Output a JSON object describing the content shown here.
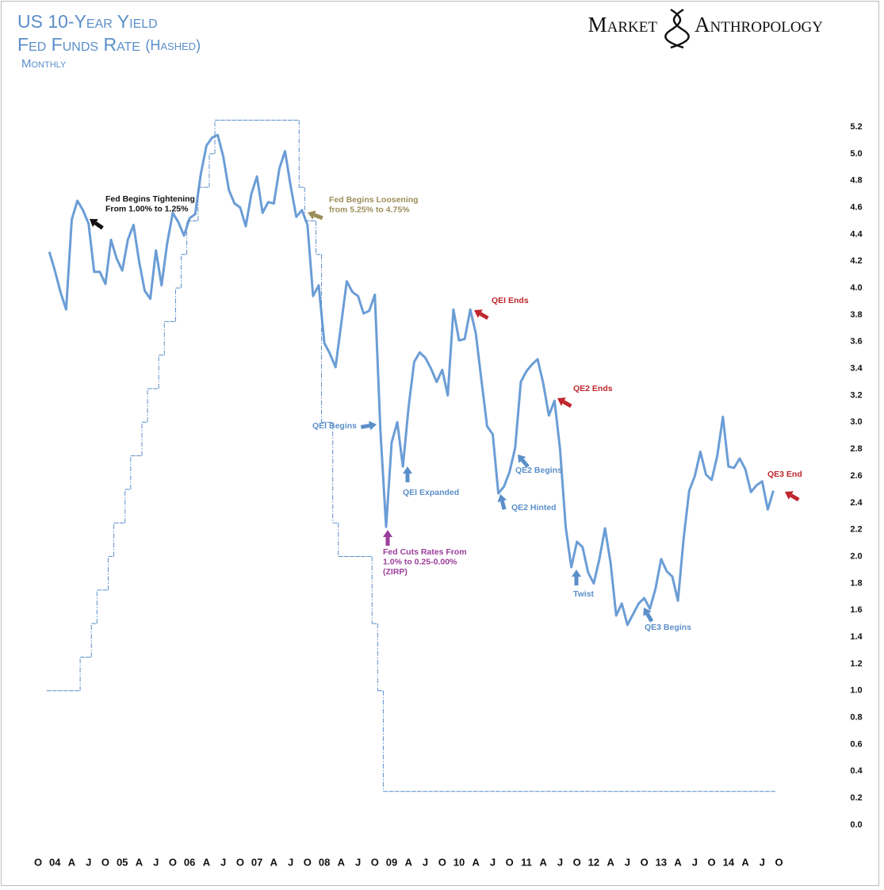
{
  "chart_data": {
    "type": "line",
    "title": "US 10-Year Yield",
    "title_line2": "Fed Funds Rate",
    "title_line2_note": "(Hashed)",
    "subtitle": "Monthly",
    "brand": [
      "Market",
      "Anthropology"
    ],
    "categories": [
      "O",
      null,
      null,
      "04",
      null,
      null,
      "A",
      null,
      null,
      "J",
      null,
      null,
      "O",
      null,
      null,
      "05",
      null,
      null,
      "A",
      null,
      null,
      "J",
      null,
      null,
      "O",
      null,
      null,
      "06",
      null,
      null,
      "A",
      null,
      null,
      "J",
      null,
      null,
      "O",
      null,
      null,
      "07",
      null,
      null,
      "A",
      null,
      null,
      "J",
      null,
      null,
      "O",
      null,
      null,
      "08",
      null,
      null,
      "A",
      null,
      null,
      "J",
      null,
      null,
      "O",
      null,
      null,
      "09",
      null,
      null,
      "A",
      null,
      null,
      "J",
      null,
      null,
      "O",
      null,
      null,
      "10",
      null,
      null,
      "A",
      null,
      null,
      "J",
      null,
      null,
      "O",
      null,
      null,
      "11",
      null,
      null,
      "A",
      null,
      null,
      "J",
      null,
      null,
      "O",
      null,
      null,
      "12",
      null,
      null,
      "A",
      null,
      null,
      "J",
      null,
      null,
      "O",
      null,
      null,
      "13",
      null,
      null,
      "A",
      null,
      null,
      "J",
      null,
      null,
      "O",
      null,
      null,
      "14",
      null,
      null,
      "A",
      null,
      null,
      "J",
      null,
      null,
      "O"
    ],
    "series": [
      {
        "color": "#6b9dd6",
        "style": "solid",
        "values": [
          null,
          null,
          4.27,
          4.13,
          3.97,
          3.84,
          4.51,
          4.65,
          4.58,
          4.48,
          4.12,
          4.12,
          4.03,
          4.36,
          4.22,
          4.13,
          4.36,
          4.47,
          4.2,
          3.98,
          3.92,
          4.28,
          4.02,
          4.33,
          4.56,
          4.49,
          4.39,
          4.52,
          4.55,
          4.85,
          5.06,
          5.12,
          5.14,
          4.98,
          4.73,
          4.63,
          4.6,
          4.46,
          4.7,
          4.83,
          4.56,
          4.64,
          4.63,
          4.89,
          5.02,
          4.76,
          4.53,
          4.58,
          4.47,
          3.94,
          4.02,
          3.59,
          3.51,
          3.41,
          3.73,
          4.05,
          3.97,
          3.94,
          3.81,
          3.83,
          3.95,
          2.93,
          2.22,
          2.85,
          3.0,
          2.67,
          3.11,
          3.45,
          3.52,
          3.48,
          3.4,
          3.3,
          3.39,
          3.2,
          3.84,
          3.61,
          3.62,
          3.84,
          3.66,
          3.31,
          2.97,
          2.91,
          2.47,
          2.52,
          2.63,
          2.81,
          3.3,
          3.38,
          3.43,
          3.47,
          3.29,
          3.05,
          3.16,
          2.8,
          2.22,
          1.92,
          2.11,
          2.07,
          1.88,
          1.8,
          1.98,
          2.21,
          1.95,
          1.56,
          1.65,
          1.49,
          1.57,
          1.65,
          1.69,
          1.61,
          1.76,
          1.98,
          1.89,
          1.85,
          1.67,
          2.13,
          2.49,
          2.6,
          2.78,
          2.61,
          2.57,
          2.75,
          3.04,
          2.67,
          2.66,
          2.73,
          2.65,
          2.48,
          2.53,
          2.56,
          2.35,
          2.49,
          null
        ]
      },
      {
        "color": "#5b8fc9",
        "style": "dash-dot-step",
        "values": [
          null,
          null,
          1,
          1,
          1,
          1,
          1,
          1,
          1.25,
          1.25,
          1.5,
          1.75,
          1.75,
          2,
          2.25,
          2.25,
          2.5,
          2.75,
          2.75,
          3,
          3.25,
          3.25,
          3.5,
          3.75,
          3.75,
          4,
          4.25,
          4.5,
          4.5,
          4.75,
          4.75,
          5,
          5.25,
          5.25,
          5.25,
          5.25,
          5.25,
          5.25,
          5.25,
          5.25,
          5.25,
          5.25,
          5.25,
          5.25,
          5.25,
          5.25,
          5.25,
          4.75,
          4.5,
          4.5,
          4.25,
          3,
          3,
          2.25,
          2,
          2,
          2,
          2,
          2,
          2,
          1.5,
          1,
          0.25,
          0.25,
          0.25,
          0.25,
          0.25,
          0.25,
          0.25,
          0.25,
          0.25,
          0.25,
          0.25,
          0.25,
          0.25,
          0.25,
          0.25,
          0.25,
          0.25,
          0.25,
          0.25,
          0.25,
          0.25,
          0.25,
          0.25,
          0.25,
          0.25,
          0.25,
          0.25,
          0.25,
          0.25,
          0.25,
          0.25,
          0.25,
          0.25,
          0.25,
          0.25,
          0.25,
          0.25,
          0.25,
          0.25,
          0.25,
          0.25,
          0.25,
          0.25,
          0.25,
          0.25,
          0.25,
          0.25,
          0.25,
          0.25,
          0.25,
          0.25,
          0.25,
          0.25,
          0.25,
          0.25,
          0.25,
          0.25,
          0.25,
          0.25,
          0.25,
          0.25,
          0.25,
          0.25,
          0.25,
          0.25,
          0.25,
          0.25,
          0.25,
          0.25,
          0.25,
          null
        ]
      }
    ],
    "ylim": [
      0,
      5.2
    ],
    "yticks": [
      {
        "value": 0,
        "label": "0.0"
      },
      0.2,
      0.4,
      0.6,
      0.8,
      {
        "value": 1,
        "label": "1.0"
      },
      1.2,
      1.4,
      1.6,
      1.8,
      {
        "value": 2,
        "label": "2.0"
      },
      2.2,
      2.4,
      2.6,
      2.8,
      {
        "value": 3,
        "label": "3.0"
      },
      3.2,
      3.4,
      3.6,
      3.8,
      {
        "value": 4,
        "label": "4.0"
      },
      4.2,
      4.4,
      4.6,
      4.8,
      {
        "value": 5,
        "label": "5.0"
      },
      5.2
    ],
    "grid": false,
    "annotations": [
      {
        "lines": [
          "Fed Begins Tightening",
          "From 1.00% to 1.25%"
        ],
        "color": "#111111"
      },
      {
        "lines": [
          "Fed Begins Loosening",
          "from 5.25% to 4.75%"
        ],
        "color": "#9c8e5b"
      },
      {
        "lines": [
          "QEI Ends"
        ],
        "color": "#c0262d"
      },
      {
        "lines": [
          "QE2 Ends"
        ],
        "color": "#c0262d"
      },
      {
        "lines": [
          "QE3 End"
        ],
        "color": "#c0262d"
      },
      {
        "lines": [
          "QEI Begins"
        ],
        "color": "#5b8fc9"
      },
      {
        "lines": [
          "QEI Expanded"
        ],
        "color": "#5b8fc9"
      },
      {
        "lines": [
          "QE2 Begins"
        ],
        "color": "#5b8fc9"
      },
      {
        "lines": [
          "QE2 Hinted"
        ],
        "color": "#5b8fc9"
      },
      {
        "lines": [
          "Twist"
        ],
        "color": "#5b8fc9"
      },
      {
        "lines": [
          "QE3 Begins"
        ],
        "color": "#5b8fc9"
      },
      {
        "lines": [
          "Fed Cuts Rates From",
          "1.0% to 0.25-0.00%",
          "(ZIRP)"
        ],
        "color": "#9b3d9b"
      }
    ]
  }
}
